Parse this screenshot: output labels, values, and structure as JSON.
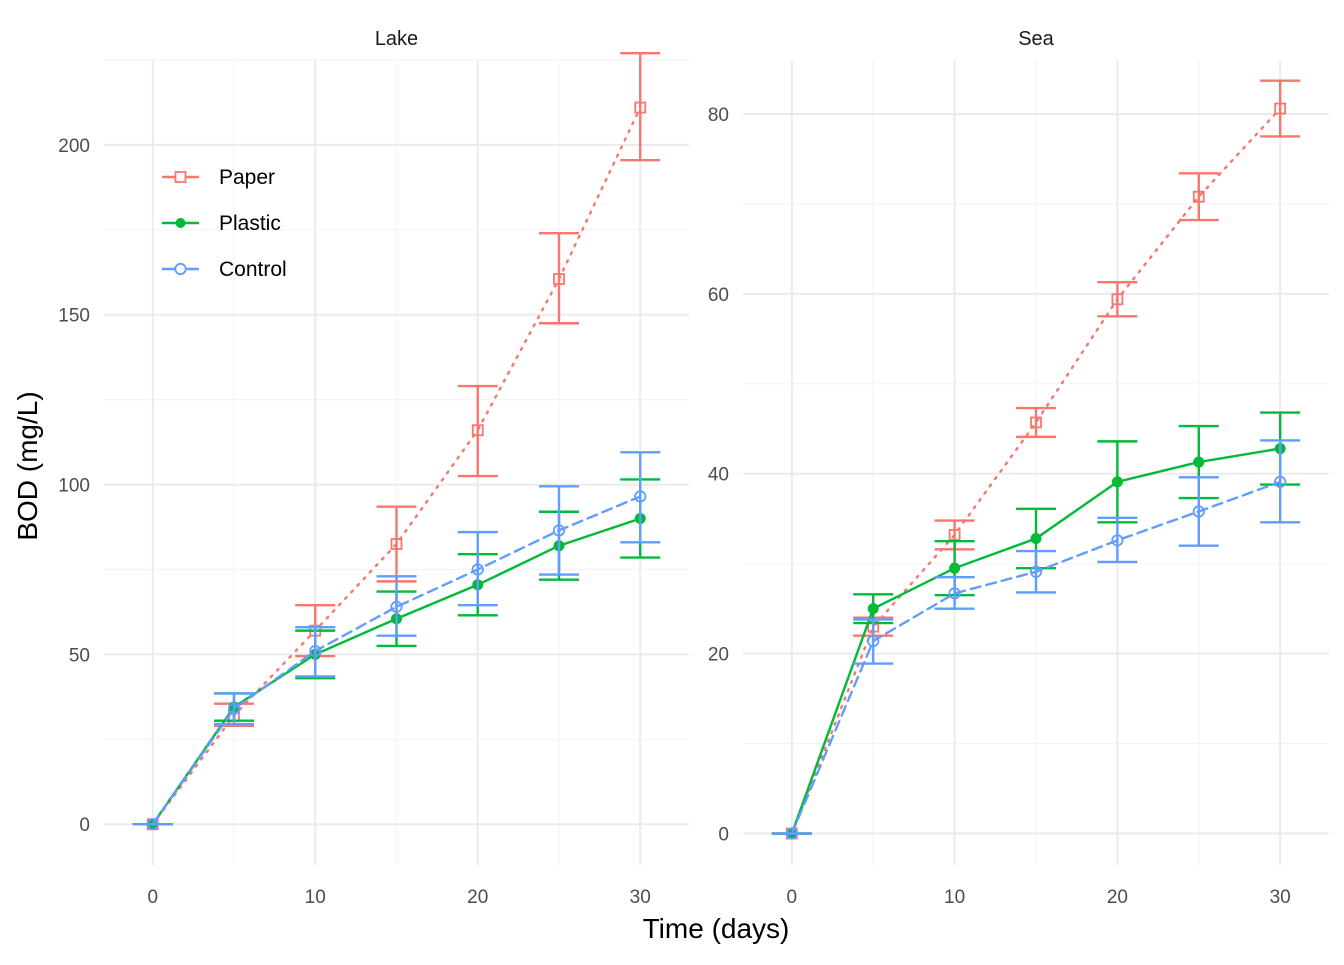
{
  "chart_data": {
    "type": "line",
    "xlabel": "Time (days)",
    "ylabel": "BOD (mg/L)",
    "x": [
      0,
      5,
      10,
      15,
      20,
      25,
      30
    ],
    "legend": {
      "placement": "top-left inside Lake panel",
      "entries": [
        {
          "name": "Paper",
          "color": "#f8766d",
          "marker": "open-square",
          "linestyle": "dotted"
        },
        {
          "name": "Plastic",
          "color": "#00ba38",
          "marker": "filled-circle",
          "linestyle": "solid"
        },
        {
          "name": "Control",
          "color": "#619cff",
          "marker": "open-circle",
          "linestyle": "dashed"
        }
      ]
    },
    "grid": true,
    "panels": [
      {
        "title": "Lake",
        "xlim": [
          -3,
          33
        ],
        "xticks": [
          0,
          10,
          20,
          30
        ],
        "ylim": [
          -12,
          225
        ],
        "yticks": [
          0,
          50,
          100,
          150,
          200
        ],
        "series": [
          {
            "name": "Paper",
            "y": [
              0,
              32,
              57,
              82.5,
              116,
              160.5,
              211
            ],
            "err_low": [
              0,
              29,
              49.5,
              71.5,
              102.5,
              147.5,
              195.5
            ],
            "err_high": [
              0,
              35.5,
              64.5,
              93.5,
              129,
              174,
              227
            ]
          },
          {
            "name": "Plastic",
            "y": [
              0,
              34.5,
              50,
              60.5,
              70.5,
              82,
              90
            ],
            "err_low": [
              0,
              30.5,
              43,
              52.5,
              61.5,
              72,
              78.5
            ],
            "err_high": [
              0,
              38.5,
              57,
              68.5,
              79.5,
              92,
              101.5
            ]
          },
          {
            "name": "Control",
            "y": [
              0,
              34,
              51,
              64,
              75,
              86.5,
              96.5
            ],
            "err_low": [
              0,
              29.5,
              43.5,
              55.5,
              64.5,
              73.5,
              83
            ],
            "err_high": [
              0,
              38.5,
              58,
              73,
              86,
              99.5,
              109.5
            ]
          }
        ]
      },
      {
        "title": "Sea",
        "xlim": [
          -3,
          33
        ],
        "xticks": [
          0,
          10,
          20,
          30
        ],
        "ylim": [
          -3.5,
          86
        ],
        "yticks": [
          0,
          20,
          40,
          60,
          80
        ],
        "series": [
          {
            "name": "Paper",
            "y": [
              0,
              23,
              33.2,
              45.7,
              59.4,
              70.8,
              80.6
            ],
            "err_low": [
              0,
              22,
              31.6,
              44.1,
              57.5,
              68.2,
              77.5
            ],
            "err_high": [
              0,
              24,
              34.8,
              47.3,
              61.3,
              73.4,
              83.7
            ]
          },
          {
            "name": "Plastic",
            "y": [
              0,
              25,
              29.5,
              32.8,
              39.1,
              41.3,
              42.8
            ],
            "err_low": [
              0,
              23.4,
              26.5,
              29.5,
              34.6,
              37.3,
              38.8
            ],
            "err_high": [
              0,
              26.6,
              32.5,
              36.1,
              43.6,
              45.3,
              46.8
            ]
          },
          {
            "name": "Control",
            "y": [
              0,
              21.4,
              26.7,
              29.1,
              32.6,
              35.8,
              39.1
            ],
            "err_low": [
              0,
              18.9,
              25,
              26.8,
              30.2,
              32,
              34.6
            ],
            "err_high": [
              0,
              23.8,
              28.5,
              31.4,
              35.1,
              39.6,
              43.7
            ]
          }
        ]
      }
    ]
  }
}
